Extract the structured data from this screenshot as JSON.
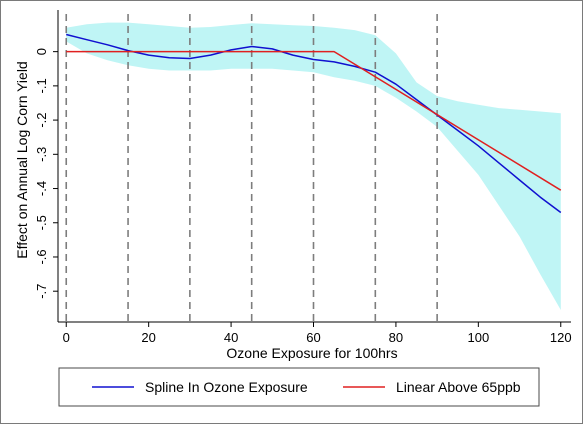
{
  "chart_data": {
    "type": "line",
    "title": "",
    "xlabel": "Ozone Exposure for 100hrs",
    "ylabel": "Effect on Annual Log Corn Yield",
    "xlim": [
      -2,
      122
    ],
    "ylim": [
      -0.79,
      0.11
    ],
    "xticks": [
      0,
      20,
      40,
      60,
      80,
      100,
      120
    ],
    "yticks": [
      0,
      -0.1,
      -0.2,
      -0.3,
      -0.4,
      -0.5,
      -0.6,
      -0.7
    ],
    "ytick_labels": [
      "0",
      "-.1",
      "-.2",
      "-.3",
      "-.4",
      "-.5",
      "-.6",
      "-.7"
    ],
    "knots": [
      0,
      15,
      30,
      45,
      60,
      75,
      90
    ],
    "grid": false,
    "legend_position": "bottom",
    "series": [
      {
        "name": "Spline In Ozone Exposure",
        "color": "#1010d0",
        "x": [
          0,
          5,
          10,
          15,
          20,
          25,
          30,
          35,
          40,
          45,
          50,
          55,
          60,
          65,
          70,
          75,
          80,
          85,
          90,
          95,
          100,
          105,
          110,
          115,
          120
        ],
        "values": [
          0.05,
          0.035,
          0.02,
          0.003,
          -0.01,
          -0.018,
          -0.02,
          -0.01,
          0.005,
          0.015,
          0.008,
          -0.01,
          -0.023,
          -0.03,
          -0.043,
          -0.06,
          -0.095,
          -0.14,
          -0.185,
          -0.23,
          -0.275,
          -0.325,
          -0.375,
          -0.425,
          -0.47
        ]
      },
      {
        "name": "Linear Above 65ppb",
        "color": "#e02020",
        "x": [
          0,
          65,
          120
        ],
        "values": [
          0,
          0,
          -0.405
        ]
      }
    ],
    "confidence_band": {
      "name": "Spline confidence interval",
      "color": "#bff5f5",
      "x": [
        0,
        5,
        10,
        15,
        20,
        25,
        30,
        35,
        40,
        45,
        50,
        55,
        60,
        65,
        70,
        75,
        80,
        85,
        90,
        95,
        100,
        105,
        110,
        115,
        120
      ],
      "upper": [
        0.07,
        0.08,
        0.085,
        0.085,
        0.08,
        0.075,
        0.07,
        0.072,
        0.078,
        0.083,
        0.08,
        0.077,
        0.075,
        0.07,
        0.063,
        0.048,
        -0.005,
        -0.09,
        -0.13,
        -0.145,
        -0.155,
        -0.165,
        -0.17,
        -0.175,
        -0.18
      ],
      "lower": [
        0.03,
        -0.005,
        -0.025,
        -0.04,
        -0.05,
        -0.055,
        -0.055,
        -0.055,
        -0.05,
        -0.05,
        -0.05,
        -0.055,
        -0.06,
        -0.075,
        -0.085,
        -0.1,
        -0.135,
        -0.175,
        -0.22,
        -0.29,
        -0.36,
        -0.45,
        -0.54,
        -0.65,
        -0.755
      ]
    }
  },
  "legend": {
    "items": [
      {
        "label": "Spline In Ozone Exposure",
        "color": "#1010d0"
      },
      {
        "label": "Linear Above 65ppb",
        "color": "#e02020"
      }
    ]
  }
}
